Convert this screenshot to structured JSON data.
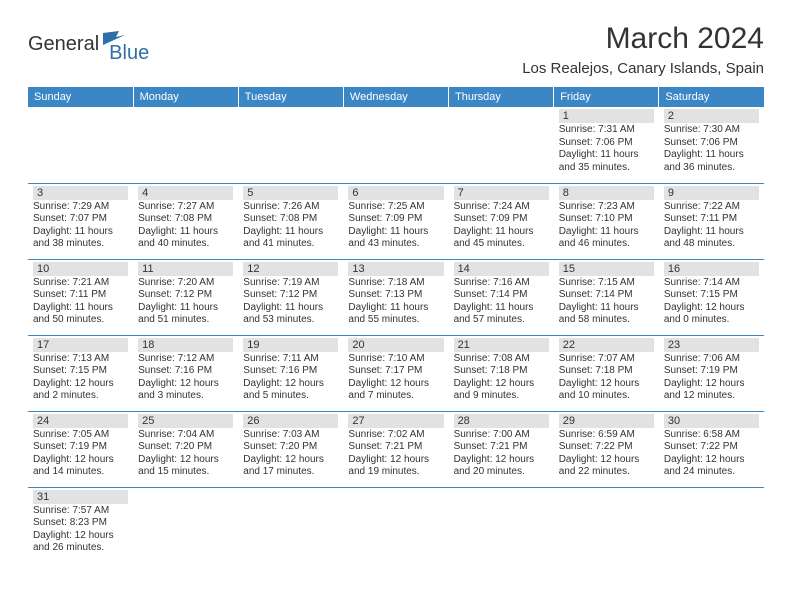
{
  "logo": {
    "general": "General",
    "blue": "Blue"
  },
  "header": {
    "title": "March 2024",
    "location": "Los Realejos, Canary Islands, Spain"
  },
  "colors": {
    "header_bg": "#3b86c4",
    "header_text": "#ffffff",
    "daybar_bg": "#e2e2e2",
    "body_text": "#333333",
    "accent": "#2f6fa8",
    "rule": "#3b86c4"
  },
  "dayNames": [
    "Sunday",
    "Monday",
    "Tuesday",
    "Wednesday",
    "Thursday",
    "Friday",
    "Saturday"
  ],
  "weeks": [
    [
      null,
      null,
      null,
      null,
      null,
      {
        "n": "1",
        "sunrise": "Sunrise: 7:31 AM",
        "sunset": "Sunset: 7:06 PM",
        "daylight": "Daylight: 11 hours and 35 minutes."
      },
      {
        "n": "2",
        "sunrise": "Sunrise: 7:30 AM",
        "sunset": "Sunset: 7:06 PM",
        "daylight": "Daylight: 11 hours and 36 minutes."
      }
    ],
    [
      {
        "n": "3",
        "sunrise": "Sunrise: 7:29 AM",
        "sunset": "Sunset: 7:07 PM",
        "daylight": "Daylight: 11 hours and 38 minutes."
      },
      {
        "n": "4",
        "sunrise": "Sunrise: 7:27 AM",
        "sunset": "Sunset: 7:08 PM",
        "daylight": "Daylight: 11 hours and 40 minutes."
      },
      {
        "n": "5",
        "sunrise": "Sunrise: 7:26 AM",
        "sunset": "Sunset: 7:08 PM",
        "daylight": "Daylight: 11 hours and 41 minutes."
      },
      {
        "n": "6",
        "sunrise": "Sunrise: 7:25 AM",
        "sunset": "Sunset: 7:09 PM",
        "daylight": "Daylight: 11 hours and 43 minutes."
      },
      {
        "n": "7",
        "sunrise": "Sunrise: 7:24 AM",
        "sunset": "Sunset: 7:09 PM",
        "daylight": "Daylight: 11 hours and 45 minutes."
      },
      {
        "n": "8",
        "sunrise": "Sunrise: 7:23 AM",
        "sunset": "Sunset: 7:10 PM",
        "daylight": "Daylight: 11 hours and 46 minutes."
      },
      {
        "n": "9",
        "sunrise": "Sunrise: 7:22 AM",
        "sunset": "Sunset: 7:11 PM",
        "daylight": "Daylight: 11 hours and 48 minutes."
      }
    ],
    [
      {
        "n": "10",
        "sunrise": "Sunrise: 7:21 AM",
        "sunset": "Sunset: 7:11 PM",
        "daylight": "Daylight: 11 hours and 50 minutes."
      },
      {
        "n": "11",
        "sunrise": "Sunrise: 7:20 AM",
        "sunset": "Sunset: 7:12 PM",
        "daylight": "Daylight: 11 hours and 51 minutes."
      },
      {
        "n": "12",
        "sunrise": "Sunrise: 7:19 AM",
        "sunset": "Sunset: 7:12 PM",
        "daylight": "Daylight: 11 hours and 53 minutes."
      },
      {
        "n": "13",
        "sunrise": "Sunrise: 7:18 AM",
        "sunset": "Sunset: 7:13 PM",
        "daylight": "Daylight: 11 hours and 55 minutes."
      },
      {
        "n": "14",
        "sunrise": "Sunrise: 7:16 AM",
        "sunset": "Sunset: 7:14 PM",
        "daylight": "Daylight: 11 hours and 57 minutes."
      },
      {
        "n": "15",
        "sunrise": "Sunrise: 7:15 AM",
        "sunset": "Sunset: 7:14 PM",
        "daylight": "Daylight: 11 hours and 58 minutes."
      },
      {
        "n": "16",
        "sunrise": "Sunrise: 7:14 AM",
        "sunset": "Sunset: 7:15 PM",
        "daylight": "Daylight: 12 hours and 0 minutes."
      }
    ],
    [
      {
        "n": "17",
        "sunrise": "Sunrise: 7:13 AM",
        "sunset": "Sunset: 7:15 PM",
        "daylight": "Daylight: 12 hours and 2 minutes."
      },
      {
        "n": "18",
        "sunrise": "Sunrise: 7:12 AM",
        "sunset": "Sunset: 7:16 PM",
        "daylight": "Daylight: 12 hours and 3 minutes."
      },
      {
        "n": "19",
        "sunrise": "Sunrise: 7:11 AM",
        "sunset": "Sunset: 7:16 PM",
        "daylight": "Daylight: 12 hours and 5 minutes."
      },
      {
        "n": "20",
        "sunrise": "Sunrise: 7:10 AM",
        "sunset": "Sunset: 7:17 PM",
        "daylight": "Daylight: 12 hours and 7 minutes."
      },
      {
        "n": "21",
        "sunrise": "Sunrise: 7:08 AM",
        "sunset": "Sunset: 7:18 PM",
        "daylight": "Daylight: 12 hours and 9 minutes."
      },
      {
        "n": "22",
        "sunrise": "Sunrise: 7:07 AM",
        "sunset": "Sunset: 7:18 PM",
        "daylight": "Daylight: 12 hours and 10 minutes."
      },
      {
        "n": "23",
        "sunrise": "Sunrise: 7:06 AM",
        "sunset": "Sunset: 7:19 PM",
        "daylight": "Daylight: 12 hours and 12 minutes."
      }
    ],
    [
      {
        "n": "24",
        "sunrise": "Sunrise: 7:05 AM",
        "sunset": "Sunset: 7:19 PM",
        "daylight": "Daylight: 12 hours and 14 minutes."
      },
      {
        "n": "25",
        "sunrise": "Sunrise: 7:04 AM",
        "sunset": "Sunset: 7:20 PM",
        "daylight": "Daylight: 12 hours and 15 minutes."
      },
      {
        "n": "26",
        "sunrise": "Sunrise: 7:03 AM",
        "sunset": "Sunset: 7:20 PM",
        "daylight": "Daylight: 12 hours and 17 minutes."
      },
      {
        "n": "27",
        "sunrise": "Sunrise: 7:02 AM",
        "sunset": "Sunset: 7:21 PM",
        "daylight": "Daylight: 12 hours and 19 minutes."
      },
      {
        "n": "28",
        "sunrise": "Sunrise: 7:00 AM",
        "sunset": "Sunset: 7:21 PM",
        "daylight": "Daylight: 12 hours and 20 minutes."
      },
      {
        "n": "29",
        "sunrise": "Sunrise: 6:59 AM",
        "sunset": "Sunset: 7:22 PM",
        "daylight": "Daylight: 12 hours and 22 minutes."
      },
      {
        "n": "30",
        "sunrise": "Sunrise: 6:58 AM",
        "sunset": "Sunset: 7:22 PM",
        "daylight": "Daylight: 12 hours and 24 minutes."
      }
    ],
    [
      {
        "n": "31",
        "sunrise": "Sunrise: 7:57 AM",
        "sunset": "Sunset: 8:23 PM",
        "daylight": "Daylight: 12 hours and 26 minutes."
      },
      null,
      null,
      null,
      null,
      null,
      null
    ]
  ]
}
